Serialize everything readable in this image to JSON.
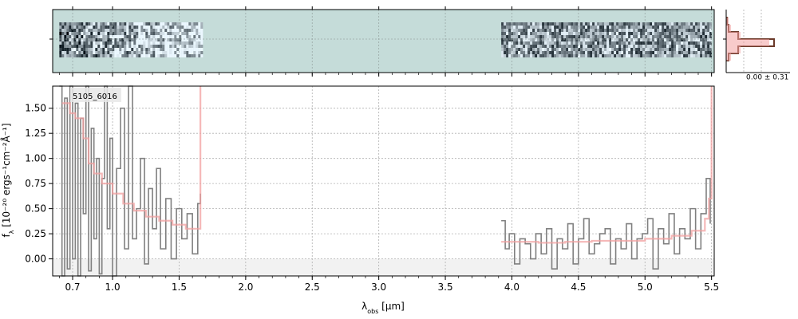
{
  "chart_data": [
    {
      "type": "heatmap",
      "panel": "2d-spectrum",
      "colormap": "bone_r",
      "background": "#c5dcd9",
      "segments_um": [
        [
          0.6,
          1.67
        ],
        [
          3.92,
          5.5
        ]
      ]
    },
    {
      "type": "line",
      "panel": "1d-spectrum",
      "annotation": "5105_6016",
      "xlabel": "λ",
      "xlabel_sub": "obs",
      "xlabel_unit": " [μm]",
      "ylabel": "f",
      "ylabel_sub": "λ",
      "ylabel_unit": " [10⁻²⁰ ergs⁻¹cm⁻²Å⁻¹]",
      "ylim": [
        -0.17,
        1.72
      ],
      "x_ticks": [
        {
          "v": 0.7,
          "label": "0.7"
        },
        {
          "v": 1.0,
          "label": "1.0"
        },
        {
          "v": 1.5,
          "label": "1.5"
        },
        {
          "v": 2.0,
          "label": "2.0"
        },
        {
          "v": 2.5,
          "label": "2.5"
        },
        {
          "v": 3.0,
          "label": "3.0"
        },
        {
          "v": 3.5,
          "label": "3.5"
        },
        {
          "v": 4.0,
          "label": "4.0"
        },
        {
          "v": 4.5,
          "label": "4.5"
        },
        {
          "v": 5.0,
          "label": "5.0"
        },
        {
          "v": 5.5,
          "label": "5.5"
        }
      ],
      "y_ticks": [
        {
          "v": 0.0,
          "label": "0.00"
        },
        {
          "v": 0.25,
          "label": "0.25"
        },
        {
          "v": 0.5,
          "label": "0.50"
        },
        {
          "v": 0.75,
          "label": "0.75"
        },
        {
          "v": 1.0,
          "label": "1.00"
        },
        {
          "v": 1.25,
          "label": "1.25"
        },
        {
          "v": 1.5,
          "label": "1.50"
        }
      ],
      "grid": true,
      "series": [
        {
          "color": "#808080",
          "x": [
            0.6,
            0.62,
            0.64,
            0.66,
            0.68,
            0.7,
            0.72,
            0.74,
            0.76,
            0.78,
            0.8,
            0.82,
            0.84,
            0.86,
            0.88,
            0.9,
            0.92,
            0.94,
            0.96,
            0.98,
            1.0,
            1.03,
            1.06,
            1.09,
            1.12,
            1.15,
            1.18,
            1.21,
            1.24,
            1.27,
            1.3,
            1.33,
            1.36,
            1.4,
            1.44,
            1.48,
            1.52,
            1.56,
            1.6,
            1.64,
            1.66
          ],
          "y": [
            1.72,
            -0.17,
            1.6,
            -0.1,
            1.72,
            0.0,
            1.55,
            -0.17,
            1.4,
            0.45,
            1.72,
            -0.12,
            1.3,
            0.2,
            1.0,
            -0.15,
            0.8,
            1.72,
            0.3,
            1.2,
            -0.17,
            0.9,
            1.5,
            0.1,
            1.72,
            0.2,
            0.5,
            1.0,
            -0.05,
            0.7,
            0.3,
            0.9,
            0.1,
            0.6,
            0.0,
            0.5,
            0.2,
            0.45,
            0.05,
            0.55,
            0.65
          ]
        },
        {
          "color": "#808080",
          "x": [
            3.92,
            3.95,
            3.98,
            4.02,
            4.06,
            4.1,
            4.14,
            4.18,
            4.22,
            4.26,
            4.3,
            4.34,
            4.38,
            4.42,
            4.46,
            4.5,
            4.54,
            4.58,
            4.62,
            4.66,
            4.7,
            4.74,
            4.78,
            4.82,
            4.86,
            4.9,
            4.94,
            4.98,
            5.02,
            5.06,
            5.1,
            5.14,
            5.18,
            5.22,
            5.26,
            5.3,
            5.34,
            5.38,
            5.42,
            5.46,
            5.49
          ],
          "y": [
            0.38,
            0.1,
            0.25,
            -0.05,
            0.2,
            0.15,
            0.0,
            0.25,
            0.05,
            0.3,
            -0.1,
            0.2,
            0.1,
            0.35,
            -0.05,
            0.2,
            0.4,
            0.05,
            0.15,
            0.25,
            0.3,
            -0.05,
            0.2,
            0.1,
            0.35,
            0.0,
            0.2,
            0.25,
            0.4,
            -0.1,
            0.3,
            0.15,
            0.45,
            0.05,
            0.3,
            0.2,
            0.5,
            0.1,
            0.45,
            0.8,
            0.35
          ]
        },
        {
          "color": "#f2a0a0",
          "x": [
            0.62,
            0.68,
            0.72,
            0.78,
            0.82,
            0.86,
            0.92,
            1.0,
            1.08,
            1.16,
            1.25,
            1.35,
            1.45,
            1.55,
            1.64,
            1.66
          ],
          "y": [
            1.55,
            1.45,
            1.4,
            1.2,
            0.95,
            0.85,
            0.75,
            0.65,
            0.55,
            0.48,
            0.42,
            0.38,
            0.34,
            0.3,
            0.3,
            1.72
          ]
        },
        {
          "color": "#f2a0a0",
          "x": [
            3.92,
            4.0,
            4.2,
            4.4,
            4.6,
            4.8,
            5.0,
            5.2,
            5.35,
            5.45,
            5.48,
            5.5
          ],
          "y": [
            0.17,
            0.17,
            0.16,
            0.17,
            0.18,
            0.18,
            0.2,
            0.23,
            0.28,
            0.4,
            0.6,
            1.72
          ]
        }
      ]
    },
    {
      "type": "line",
      "panel": "cross-dispersion-profile",
      "annotation": "0.00 ± 0.31",
      "series": [
        {
          "color": "#6b3a2a",
          "x": [
            -3,
            -2,
            -1,
            0,
            1,
            2,
            3
          ],
          "y": [
            0.02,
            0.05,
            0.25,
            1.0,
            0.25,
            0.05,
            0.02
          ]
        },
        {
          "color": "#f2a0a0",
          "x": [
            -3,
            -2,
            -1,
            0,
            1,
            2,
            3
          ],
          "y": [
            0.05,
            0.1,
            0.3,
            0.9,
            0.3,
            0.1,
            0.05
          ]
        }
      ]
    }
  ]
}
